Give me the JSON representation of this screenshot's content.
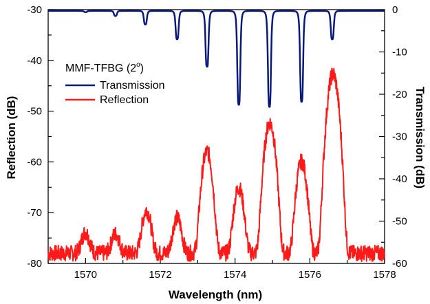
{
  "chart_data": {
    "type": "line",
    "legend_title": "MMF-TFBG (2",
    "legend_title_sup": "o",
    "legend_title_end": ")",
    "legend_placement": "top-left",
    "xlabel": "Wavelength (nm)",
    "ylabel_left": "Reflection (dB)",
    "ylabel_right": "Transmission (dB)",
    "xlim": [
      1569,
      1578
    ],
    "ylim_left": [
      -80,
      -30
    ],
    "ylim_right": [
      -60,
      0
    ],
    "x_ticks": [
      "1570",
      "1572",
      "1574",
      "1576",
      "1578"
    ],
    "y_left_ticks": [
      "-30",
      "-40",
      "-50",
      "-60",
      "-70",
      "-80"
    ],
    "y_right_ticks": [
      "0",
      "-10",
      "-20",
      "-30",
      "-40",
      "-50",
      "-60"
    ],
    "grid": false,
    "colors": {
      "transmission": "#0a1a7a",
      "reflection": "#ff1a1a"
    },
    "series": [
      {
        "name": "Transmission",
        "axis": "right",
        "color": "#0a1a7a",
        "baseline": -0.3,
        "dips": [
          {
            "x": 1570.0,
            "depth": -0.6
          },
          {
            "x": 1570.8,
            "depth": -1.5
          },
          {
            "x": 1571.6,
            "depth": -3.5
          },
          {
            "x": 1572.45,
            "depth": -7.0
          },
          {
            "x": 1573.25,
            "depth": -13.5
          },
          {
            "x": 1574.1,
            "depth": -22.5
          },
          {
            "x": 1574.92,
            "depth": -23.0
          },
          {
            "x": 1575.78,
            "depth": -21.8
          },
          {
            "x": 1576.6,
            "depth": -7.0
          }
        ]
      },
      {
        "name": "Reflection",
        "axis": "left",
        "color": "#ff1a1a",
        "baseline": -78,
        "peaks": [
          {
            "x": 1570.0,
            "value": -76.0
          },
          {
            "x": 1570.8,
            "value": -76.5
          },
          {
            "x": 1571.63,
            "value": -70.2
          },
          {
            "x": 1572.45,
            "value": -72.0
          },
          {
            "x": 1573.25,
            "value": -58.0
          },
          {
            "x": 1574.1,
            "value": -65.3
          },
          {
            "x": 1574.93,
            "value": -52.3
          },
          {
            "x": 1575.78,
            "value": -60.0
          },
          {
            "x": 1576.62,
            "value": -42.7
          }
        ]
      }
    ]
  }
}
